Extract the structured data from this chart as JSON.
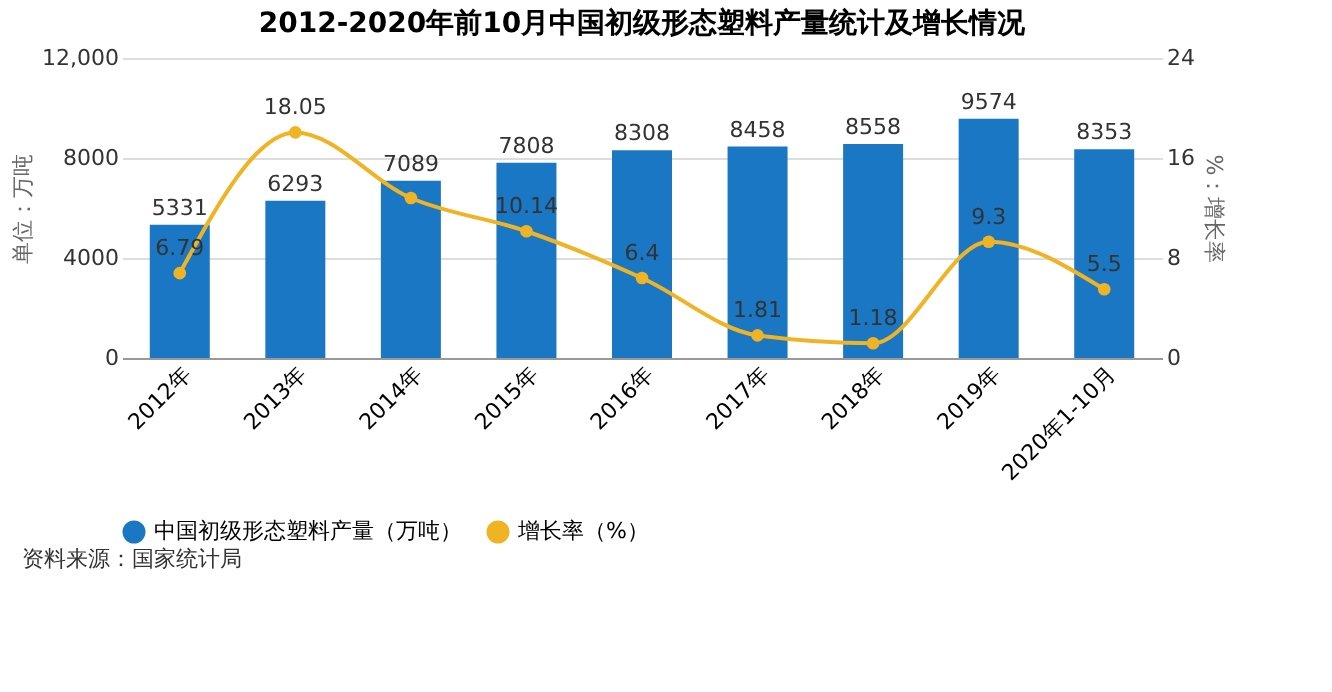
{
  "chart_data": {
    "type": "bar",
    "title": "2012-2020年前10月中国初级形态塑料产量统计及增长情况",
    "categories": [
      "2012年",
      "2013年",
      "2014年",
      "2015年",
      "2016年",
      "2017年",
      "2018年",
      "2019年",
      "2020年1-10月"
    ],
    "series": [
      {
        "name": "中国初级形态塑料产量（万吨）",
        "color": "#1a77c3",
        "values": [
          5331,
          6293,
          7089,
          7808,
          8308,
          8458,
          8558,
          9574,
          8353
        ]
      },
      {
        "name": "增长率（%）",
        "type": "line",
        "axis": "y2",
        "color": "#f0b323",
        "marker": "circle",
        "values": [
          6.79,
          18.05,
          12.8,
          10.14,
          6.4,
          1.81,
          1.18,
          9.3,
          5.5
        ],
        "value_labels": [
          "6.79",
          "18.05",
          null,
          "10.14",
          "6.4",
          "1.81",
          "1.18",
          "9.3",
          "5.5"
        ]
      }
    ],
    "data_labels": true,
    "ylabel": "单位：万吨",
    "y2label": "%：增长率",
    "ylim": [
      0,
      12000
    ],
    "yticks": [
      0,
      4000,
      8000,
      {
        "value": 12000,
        "label": "12,000"
      }
    ],
    "y2lim": [
      0,
      24
    ],
    "y2ticks": [
      0,
      8,
      16,
      24
    ],
    "grid": "y",
    "legend": "bottom",
    "annotations": [
      "资料来源：国家统计局"
    ]
  }
}
